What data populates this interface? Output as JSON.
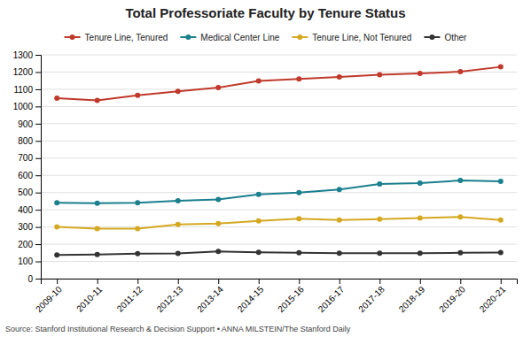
{
  "chart_data": {
    "type": "line",
    "title": "Total Professoriate Faculty by Tenure Status",
    "categories": [
      "2009-10",
      "2010-11",
      "2011-12",
      "2012-13",
      "2013-14",
      "2014-15",
      "2015-16",
      "2016-17",
      "2017-18",
      "2018-19",
      "2019-20",
      "2020-21"
    ],
    "series": [
      {
        "name": "Tenure Line, Tenured",
        "color": "#c0392b",
        "marker": "circle",
        "values": [
          1048,
          1035,
          1065,
          1088,
          1110,
          1148,
          1160,
          1172,
          1185,
          1192,
          1202,
          1230
        ]
      },
      {
        "name": "Medical Center Line",
        "color": "#1a7f8e",
        "marker": "circle",
        "values": [
          440,
          438,
          440,
          452,
          460,
          490,
          500,
          518,
          550,
          555,
          570,
          565
        ]
      },
      {
        "name": "Tenure Line, Not Tenured",
        "color": "#d4a820",
        "marker": "circle",
        "values": [
          300,
          290,
          290,
          315,
          320,
          335,
          348,
          340,
          345,
          352,
          358,
          340
        ]
      },
      {
        "name": "Other",
        "color": "#333333",
        "marker": "circle",
        "values": [
          138,
          140,
          145,
          147,
          158,
          153,
          150,
          148,
          148,
          148,
          150,
          152
        ]
      }
    ],
    "ylim": [
      0,
      1300
    ],
    "yticks": [
      0,
      100,
      200,
      300,
      400,
      500,
      600,
      700,
      800,
      900,
      1000,
      1100,
      1200,
      1300
    ],
    "grid": true,
    "legend": "top",
    "annotations": [
      "Source: Stanford Institutional Research & Decision Support • ANNA MILSTEIN/The Stanford Daily"
    ]
  }
}
